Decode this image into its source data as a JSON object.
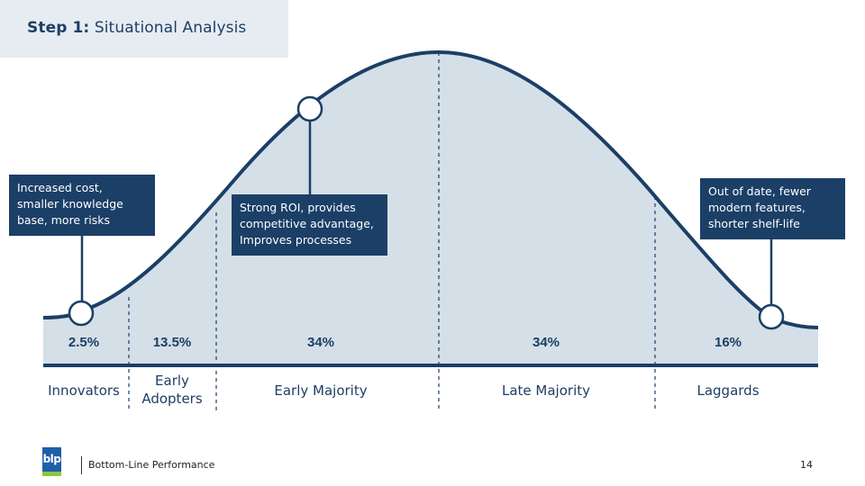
{
  "header": {
    "step_label": "Step 1:",
    "title": "Situational Analysis"
  },
  "segments": [
    {
      "name": "Innovators",
      "percent": "2.5%"
    },
    {
      "name": "Early Adopters",
      "percent": "13.5%"
    },
    {
      "name": "Early Majority",
      "percent": "34%"
    },
    {
      "name": "Late Majority",
      "percent": "34%"
    },
    {
      "name": "Laggards",
      "percent": "16%"
    }
  ],
  "callouts": {
    "innovators": [
      "Increased cost,",
      "smaller knowledge",
      "base, more risks"
    ],
    "early_majority": [
      "Strong ROI, provides",
      "competitive advantage,",
      "Improves processes"
    ],
    "laggards": [
      "Out of date, fewer",
      "modern features,",
      "shorter shelf-life"
    ]
  },
  "colors": {
    "navy": "#1b3f66",
    "curve_fill": "#d5dfe8",
    "logo_blue": "#1e5fa8",
    "logo_green": "#8cc63f"
  },
  "footer": {
    "logo_text": "blp",
    "company": "Bottom-Line Performance",
    "page_number": "14"
  }
}
